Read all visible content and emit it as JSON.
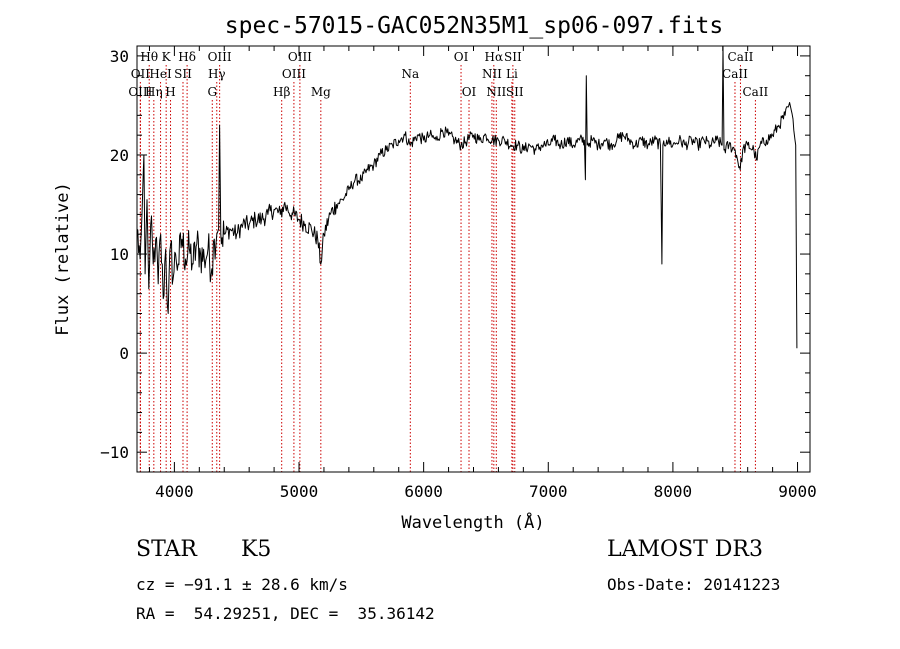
{
  "chart_data": {
    "type": "line",
    "title": "spec-57015-GAC052N35M1_sp06-097.fits",
    "xlabel": "Wavelength (Å)",
    "ylabel": "Flux (relative)",
    "xlim": [
      3700,
      9100
    ],
    "ylim": [
      -12,
      31
    ],
    "xticks": [
      4000,
      5000,
      6000,
      7000,
      8000,
      9000
    ],
    "yticks": [
      -10,
      0,
      10,
      20,
      30
    ],
    "grid": false,
    "series_color": "#000000",
    "line_color": "#cc0000",
    "lines": [
      {
        "name": "Hθ",
        "wl": 3798,
        "row": 0
      },
      {
        "name": "OII",
        "wl": 3727,
        "row": 1
      },
      {
        "name": "OIII",
        "wl": 3727,
        "row": 2
      },
      {
        "name": "K",
        "wl": 3934,
        "row": 0
      },
      {
        "name": "HeI",
        "wl": 3889,
        "row": 1
      },
      {
        "name": "Hη",
        "wl": 3835,
        "row": 2
      },
      {
        "name": "H",
        "wl": 3969,
        "row": 2
      },
      {
        "name": "Hδ",
        "wl": 4102,
        "row": 0
      },
      {
        "name": "SII",
        "wl": 4069,
        "row": 1
      },
      {
        "name": "OIII",
        "wl": 4363,
        "row": 0
      },
      {
        "name": "Hγ",
        "wl": 4340,
        "row": 1
      },
      {
        "name": "G",
        "wl": 4304,
        "row": 2
      },
      {
        "name": "Hβ",
        "wl": 4861,
        "row": 2
      },
      {
        "name": "OIII",
        "wl": 4959,
        "row": 1
      },
      {
        "name": "OIII",
        "wl": 5007,
        "row": 0
      },
      {
        "name": "Mg",
        "wl": 5175,
        "row": 2
      },
      {
        "name": "Na",
        "wl": 5893,
        "row": 1
      },
      {
        "name": "OI",
        "wl": 6300,
        "row": 0
      },
      {
        "name": "OI",
        "wl": 6364,
        "row": 2
      },
      {
        "name": "Hα",
        "wl": 6563,
        "row": 0
      },
      {
        "name": "NII",
        "wl": 6548,
        "row": 1
      },
      {
        "name": "NII",
        "wl": 6583,
        "row": 2
      },
      {
        "name": "SII",
        "wl": 6716,
        "row": 0
      },
      {
        "name": "Li",
        "wl": 6708,
        "row": 1
      },
      {
        "name": "SII",
        "wl": 6731,
        "row": 2
      },
      {
        "name": "CaII",
        "wl": 8542,
        "row": 0
      },
      {
        "name": "CaII",
        "wl": 8498,
        "row": 1
      },
      {
        "name": "CaII",
        "wl": 8662,
        "row": 2
      }
    ],
    "spectrum": [
      [
        3700,
        12.5
      ],
      [
        3725,
        9.5
      ],
      [
        3740,
        14.0
      ],
      [
        3755,
        20.0
      ],
      [
        3765,
        8.0
      ],
      [
        3780,
        15.5
      ],
      [
        3795,
        6.5
      ],
      [
        3810,
        13.0
      ],
      [
        3830,
        9.0
      ],
      [
        3850,
        11.5
      ],
      [
        3870,
        7.0
      ],
      [
        3890,
        12.0
      ],
      [
        3910,
        5.5
      ],
      [
        3930,
        10.5
      ],
      [
        3950,
        4.0
      ],
      [
        3970,
        11.0
      ],
      [
        3990,
        7.5
      ],
      [
        4010,
        10.0
      ],
      [
        4030,
        9.0
      ],
      [
        4060,
        11.5
      ],
      [
        4090,
        9.5
      ],
      [
        4120,
        10.5
      ],
      [
        4150,
        9.0
      ],
      [
        4180,
        11.0
      ],
      [
        4210,
        10.0
      ],
      [
        4240,
        9.5
      ],
      [
        4270,
        10.5
      ],
      [
        4300,
        8.5
      ],
      [
        4320,
        11.5
      ],
      [
        4340,
        12.0
      ],
      [
        4355,
        12.5
      ],
      [
        4363,
        23.0
      ],
      [
        4372,
        12.0
      ],
      [
        4400,
        12.0
      ],
      [
        4450,
        12.5
      ],
      [
        4500,
        12.0
      ],
      [
        4550,
        13.0
      ],
      [
        4600,
        13.0
      ],
      [
        4650,
        13.5
      ],
      [
        4700,
        13.5
      ],
      [
        4750,
        14.0
      ],
      [
        4800,
        14.5
      ],
      [
        4850,
        14.0
      ],
      [
        4880,
        15.0
      ],
      [
        4910,
        14.5
      ],
      [
        4950,
        14.0
      ],
      [
        5000,
        13.5
      ],
      [
        5050,
        13.0
      ],
      [
        5100,
        12.5
      ],
      [
        5150,
        11.5
      ],
      [
        5175,
        9.0
      ],
      [
        5200,
        12.0
      ],
      [
        5250,
        14.0
      ],
      [
        5300,
        15.0
      ],
      [
        5350,
        15.5
      ],
      [
        5400,
        16.5
      ],
      [
        5450,
        17.5
      ],
      [
        5500,
        17.5
      ],
      [
        5550,
        18.5
      ],
      [
        5600,
        19.0
      ],
      [
        5650,
        20.0
      ],
      [
        5700,
        20.5
      ],
      [
        5750,
        21.0
      ],
      [
        5800,
        21.5
      ],
      [
        5850,
        22.0
      ],
      [
        5893,
        21.0
      ],
      [
        5950,
        22.0
      ],
      [
        6000,
        21.5
      ],
      [
        6050,
        22.0
      ],
      [
        6100,
        21.5
      ],
      [
        6150,
        22.5
      ],
      [
        6200,
        22.0
      ],
      [
        6250,
        21.5
      ],
      [
        6300,
        21.0
      ],
      [
        6350,
        21.5
      ],
      [
        6400,
        22.0
      ],
      [
        6450,
        21.5
      ],
      [
        6500,
        22.0
      ],
      [
        6550,
        21.5
      ],
      [
        6600,
        21.5
      ],
      [
        6650,
        21.5
      ],
      [
        6700,
        21.0
      ],
      [
        6750,
        21.0
      ],
      [
        6800,
        20.5
      ],
      [
        6850,
        21.0
      ],
      [
        6900,
        20.5
      ],
      [
        6950,
        21.0
      ],
      [
        7000,
        21.0
      ],
      [
        7050,
        21.5
      ],
      [
        7100,
        21.0
      ],
      [
        7150,
        21.5
      ],
      [
        7200,
        21.0
      ],
      [
        7250,
        21.5
      ],
      [
        7290,
        21.5
      ],
      [
        7298,
        17.5
      ],
      [
        7305,
        28.0
      ],
      [
        7312,
        21.0
      ],
      [
        7350,
        21.5
      ],
      [
        7400,
        21.0
      ],
      [
        7450,
        21.5
      ],
      [
        7500,
        21.0
      ],
      [
        7550,
        21.5
      ],
      [
        7600,
        22.0
      ],
      [
        7650,
        21.5
      ],
      [
        7700,
        21.0
      ],
      [
        7750,
        21.5
      ],
      [
        7800,
        21.0
      ],
      [
        7850,
        21.5
      ],
      [
        7900,
        21.0
      ],
      [
        7912,
        9.0
      ],
      [
        7920,
        21.0
      ],
      [
        7950,
        21.5
      ],
      [
        8000,
        21.0
      ],
      [
        8050,
        21.5
      ],
      [
        8100,
        21.0
      ],
      [
        8150,
        21.5
      ],
      [
        8200,
        21.0
      ],
      [
        8250,
        21.5
      ],
      [
        8300,
        21.0
      ],
      [
        8350,
        21.5
      ],
      [
        8395,
        21.0
      ],
      [
        8402,
        31.0
      ],
      [
        8410,
        20.5
      ],
      [
        8450,
        21.0
      ],
      [
        8500,
        20.5
      ],
      [
        8540,
        18.5
      ],
      [
        8560,
        20.5
      ],
      [
        8600,
        21.0
      ],
      [
        8650,
        20.5
      ],
      [
        8670,
        19.5
      ],
      [
        8700,
        21.0
      ],
      [
        8750,
        21.5
      ],
      [
        8800,
        22.0
      ],
      [
        8850,
        23.0
      ],
      [
        8900,
        24.0
      ],
      [
        8930,
        25.0
      ],
      [
        8950,
        24.5
      ],
      [
        8970,
        22.5
      ],
      [
        8985,
        21.0
      ],
      [
        8995,
        0.5
      ]
    ]
  },
  "info": {
    "object_class": "STAR",
    "subclass": "K5",
    "survey": "LAMOST DR3",
    "redshift": "cz = −91.1 ± 28.6 km/s",
    "obs_date": "Obs-Date: 20141223",
    "coords": "RA =  54.29251, DEC =  35.36142"
  }
}
